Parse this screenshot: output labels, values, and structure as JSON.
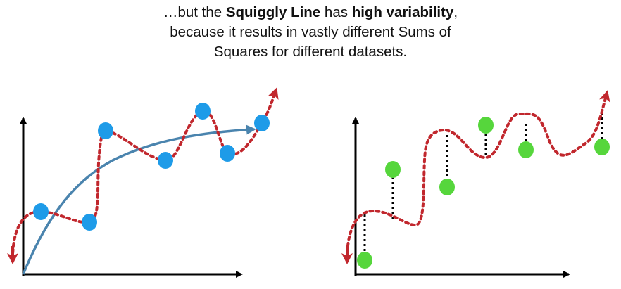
{
  "caption": {
    "line1_prefix": "…but the ",
    "line1_bold1": "Squiggly Line",
    "line1_mid": " has ",
    "line1_bold2": "high variability",
    "line1_suffix": ",",
    "line2": "because it results in vastly different Sums of",
    "line3": "Squares for different datasets."
  },
  "colors": {
    "axis": "#000000",
    "squiggle": "#c1272d",
    "training_point": "#1e9be8",
    "test_point": "#56d63c",
    "straight_curve": "#4a84ae",
    "residual": "#000000"
  },
  "left_panel": {
    "points": [
      [
        1,
        1
      ],
      [
        2,
        0.5
      ],
      [
        3,
        5
      ],
      [
        4,
        3
      ],
      [
        5,
        6
      ],
      [
        6,
        3.5
      ],
      [
        7,
        5.5
      ]
    ],
    "shows_straight_line": true
  },
  "right_panel": {
    "points": [
      [
        1,
        0
      ],
      [
        2,
        4
      ],
      [
        3,
        3
      ],
      [
        4,
        6
      ],
      [
        5,
        5
      ],
      [
        6,
        5
      ]
    ],
    "shows_residuals": true
  }
}
